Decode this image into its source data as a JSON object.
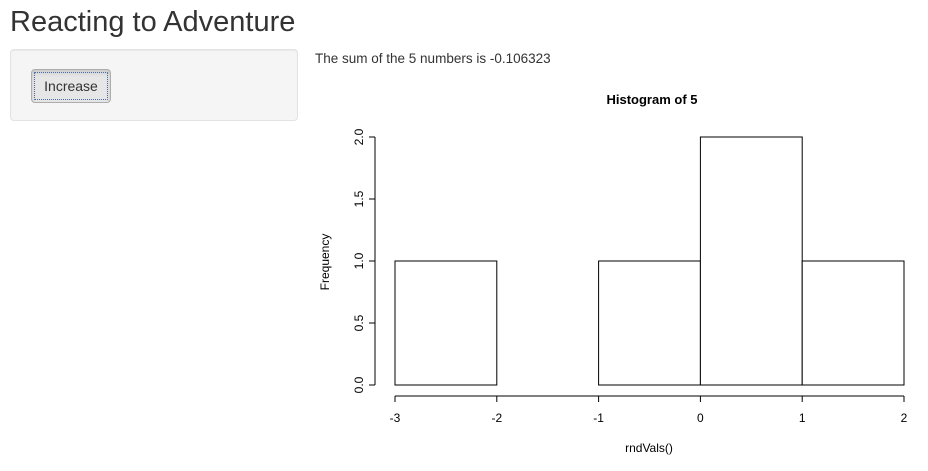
{
  "app": {
    "title": "Reacting to Adventure"
  },
  "sidebar": {
    "increase_label": "Increase"
  },
  "main": {
    "sum_text": "The sum of the 5 numbers is -0.106323"
  },
  "colors": {
    "panel_bg": "#f5f5f5",
    "button_bg": "#e6e6e6",
    "bar_fill": "#ffffff",
    "bar_stroke": "#000000"
  },
  "chart_data": {
    "type": "bar",
    "title": "Histogram of 5",
    "xlabel": "rndVals()",
    "ylabel": "Frequency",
    "bins": [
      {
        "from": -3,
        "to": -2,
        "count": 1
      },
      {
        "from": -2,
        "to": -1,
        "count": 0
      },
      {
        "from": -1,
        "to": 0,
        "count": 1
      },
      {
        "from": 0,
        "to": 1,
        "count": 2
      },
      {
        "from": 1,
        "to": 2,
        "count": 1
      }
    ],
    "xlim": [
      -3,
      2
    ],
    "ylim": [
      0,
      2
    ],
    "x_ticks": [
      -3,
      -2,
      -1,
      0,
      1,
      2
    ],
    "x_tick_labels": [
      "-3",
      "-2",
      "-1",
      "0",
      "1",
      "2"
    ],
    "y_ticks": [
      0,
      0.5,
      1,
      1.5,
      2
    ],
    "y_tick_labels": [
      "0.0",
      "0.5",
      "1.0",
      "1.5",
      "2.0"
    ],
    "grid": false,
    "legend": "none"
  }
}
